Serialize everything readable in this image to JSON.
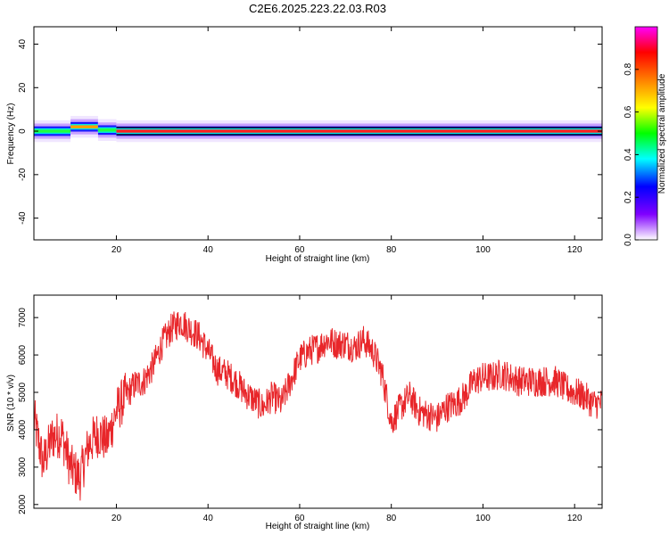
{
  "title": "C2E6.2025.223.22.03.R03",
  "chart_data": [
    {
      "type": "heatmap",
      "xlabel": "Height of straight line (km)",
      "ylabel": "Frequency (Hz)",
      "xlim": [
        2,
        126
      ],
      "ylim": [
        -50,
        48
      ],
      "xticks": [
        20,
        40,
        60,
        80,
        100,
        120
      ],
      "yticks": [
        -40,
        -20,
        0,
        20,
        40
      ],
      "colorbar": {
        "label": "Normalized spectral amplitude",
        "range": [
          0,
          1
        ],
        "ticks": [
          "0.0",
          "0.2",
          "0.4",
          "0.6",
          "0.8"
        ],
        "colors": [
          "#ffffff",
          "#8000ff",
          "#0000ff",
          "#00ffff",
          "#00ff00",
          "#ffff00",
          "#ff8000",
          "#ff0000",
          "#ff00ff"
        ]
      },
      "ridge": {
        "frequency": 0,
        "segments": [
          {
            "x0": 2,
            "x1": 10,
            "frequency": 0,
            "amplitude": 0.55
          },
          {
            "x0": 10,
            "x1": 16,
            "frequency": 2,
            "amplitude": 0.75
          },
          {
            "x0": 16,
            "x1": 20,
            "frequency": 0.5,
            "amplitude": 0.5
          },
          {
            "x0": 20,
            "x1": 126,
            "frequency": 0,
            "amplitude": 0.95
          }
        ]
      }
    },
    {
      "type": "line",
      "xlabel": "Height of straight line (km)",
      "ylabel": "SNR (10 * v/v)",
      "xlim": [
        2,
        126
      ],
      "ylim": [
        1900,
        7600
      ],
      "xticks": [
        20,
        40,
        60,
        80,
        100,
        120
      ],
      "yticks": [
        2000,
        3000,
        4000,
        5000,
        6000,
        7000
      ],
      "color": "#e8262a",
      "x": [
        2,
        4,
        6,
        8,
        10,
        12,
        14,
        16,
        18,
        20,
        22,
        24,
        26,
        28,
        30,
        32,
        34,
        36,
        38,
        40,
        42,
        44,
        46,
        48,
        50,
        52,
        54,
        56,
        58,
        60,
        62,
        64,
        66,
        68,
        70,
        72,
        74,
        76,
        78,
        80,
        82,
        84,
        86,
        88,
        90,
        92,
        94,
        96,
        98,
        100,
        102,
        104,
        106,
        108,
        110,
        112,
        114,
        116,
        118,
        120,
        122,
        124,
        126
      ],
      "y": [
        4300,
        3100,
        3800,
        3900,
        3000,
        2700,
        3600,
        3900,
        3700,
        4500,
        4900,
        5200,
        5300,
        5700,
        6300,
        6700,
        6900,
        6700,
        6500,
        6100,
        5600,
        5500,
        5300,
        5000,
        4800,
        4600,
        4900,
        4700,
        5300,
        5900,
        6100,
        6200,
        6400,
        6300,
        6300,
        6200,
        6400,
        6100,
        5500,
        4200,
        4600,
        4900,
        4500,
        4400,
        4300,
        4600,
        4700,
        4900,
        5300,
        5400,
        5400,
        5500,
        5400,
        5300,
        5300,
        5300,
        5300,
        5300,
        5100,
        5000,
        4900,
        4700,
        4700
      ]
    }
  ]
}
